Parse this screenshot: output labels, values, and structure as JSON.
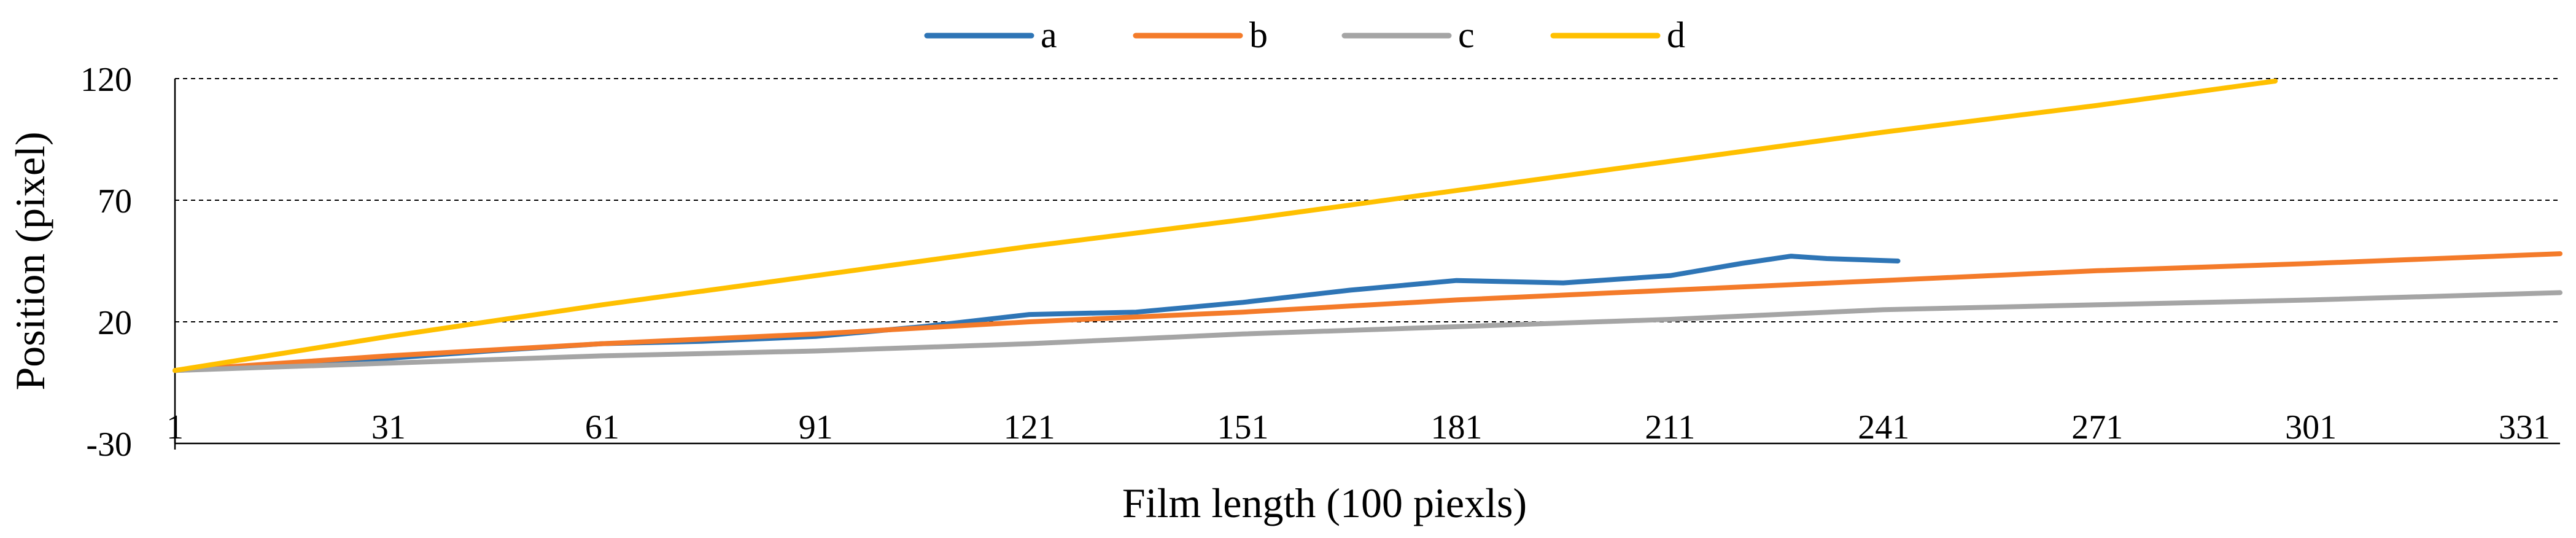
{
  "chart_data": {
    "type": "line",
    "title": "",
    "xlabel": "Film length (100 piexls)",
    "ylabel": "Position (pixel)",
    "xlim": [
      1,
      336
    ],
    "ylim": [
      -30,
      120
    ],
    "grid": "horizontal-dashed",
    "legend_position": "top-center",
    "x_ticks": [
      1,
      31,
      61,
      91,
      121,
      151,
      181,
      211,
      241,
      271,
      301,
      331
    ],
    "x_tick_labels": [
      "1",
      "31",
      "61",
      "91",
      "121",
      "151",
      "181",
      "211",
      "241",
      "271",
      "301",
      "331"
    ],
    "y_ticks": [
      -30,
      20,
      70,
      120
    ],
    "y_tick_labels": [
      "-30",
      "20",
      "70",
      "120"
    ],
    "series": [
      {
        "name": "a",
        "color": "#2E75B6",
        "x": [
          1,
          15,
          31,
          45,
          61,
          75,
          91,
          106,
          121,
          136,
          151,
          166,
          181,
          196,
          211,
          221,
          228,
          233,
          243
        ],
        "y": [
          0,
          2,
          5,
          8,
          11,
          12,
          14,
          18,
          23,
          24,
          28,
          33,
          37,
          36,
          39,
          44,
          47,
          46,
          45
        ]
      },
      {
        "name": "b",
        "color": "#F47B2A",
        "x": [
          1,
          31,
          61,
          91,
          121,
          151,
          181,
          211,
          241,
          271,
          301,
          336
        ],
        "y": [
          0,
          6,
          11,
          15,
          20,
          24,
          29,
          33,
          37,
          41,
          44,
          48
        ]
      },
      {
        "name": "c",
        "color": "#A5A5A5",
        "x": [
          1,
          31,
          61,
          91,
          121,
          151,
          181,
          211,
          241,
          271,
          301,
          336
        ],
        "y": [
          0,
          3,
          6,
          8,
          11,
          15,
          18,
          21,
          25,
          27,
          29,
          32
        ]
      },
      {
        "name": "d",
        "color": "#FFC000",
        "x": [
          1,
          31,
          61,
          91,
          121,
          151,
          181,
          211,
          241,
          271,
          296
        ],
        "y": [
          0,
          14,
          27,
          39,
          51,
          62,
          74,
          86,
          98,
          109,
          119
        ]
      }
    ]
  }
}
